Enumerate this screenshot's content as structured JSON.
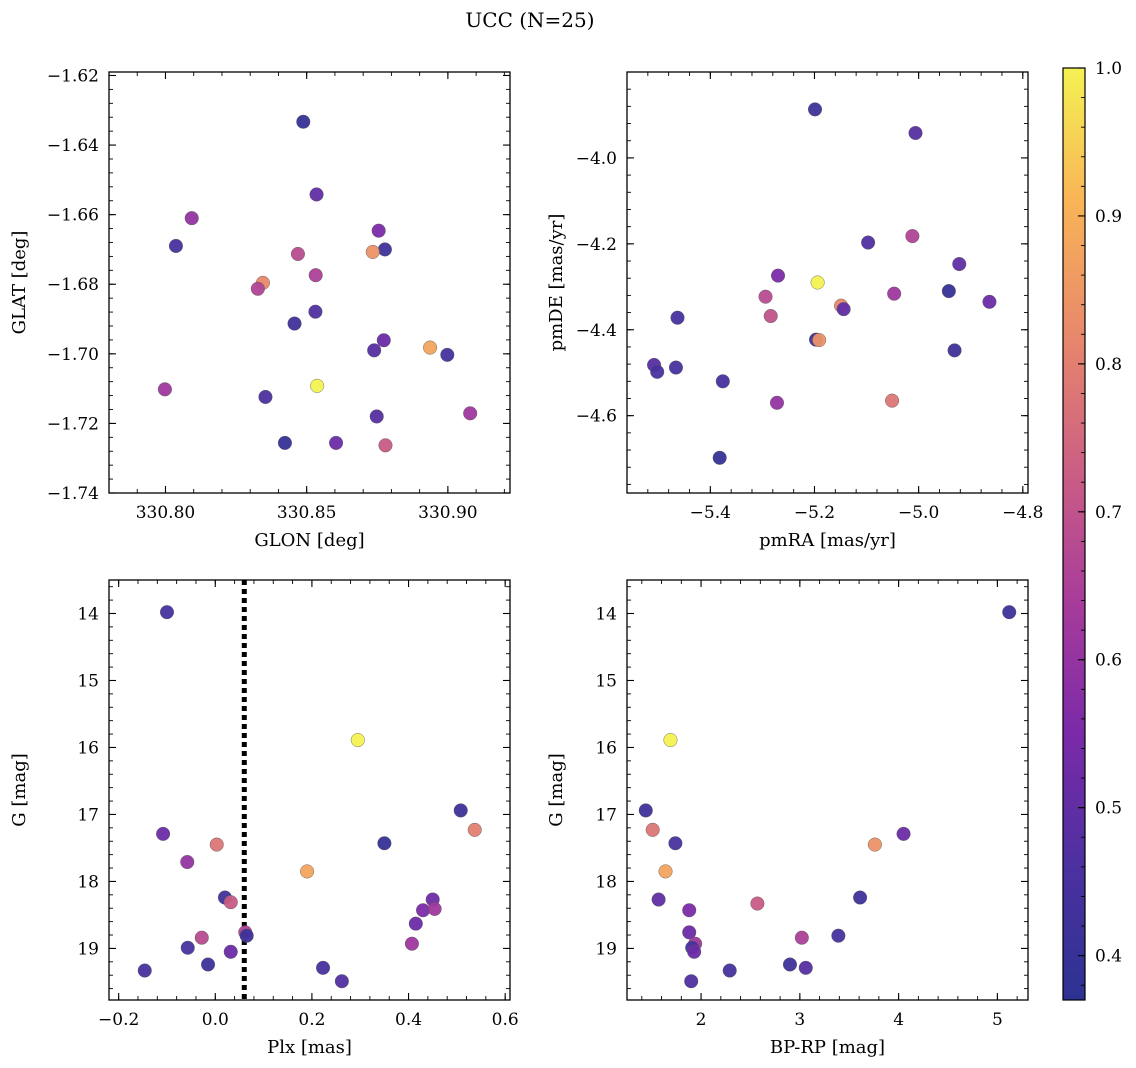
{
  "figure": {
    "title": "UCC (N=25)"
  },
  "colorbar": {
    "min": 0.37,
    "max": 1.0,
    "ticks": [
      0.4,
      0.5,
      0.6,
      0.7,
      0.8,
      0.9,
      1.0
    ],
    "tick_labels": [
      "0.4",
      "0.5",
      "0.6",
      "0.7",
      "0.8",
      "0.9",
      "1.0"
    ],
    "colormap": "plasma",
    "stops": [
      "#2c3292",
      "#4c31a0",
      "#7b2aa9",
      "#a83c9a",
      "#cc5f83",
      "#e8886b",
      "#f9b457",
      "#f4f252"
    ]
  },
  "chart_data": [
    {
      "type": "scatter",
      "title": "",
      "xlabel": "GLON [deg]",
      "ylabel": "GLAT [deg]",
      "xlim": [
        330.78,
        330.922
      ],
      "ylim": [
        -1.74,
        -1.619
      ],
      "xticks": [
        330.8,
        330.85,
        330.9
      ],
      "xtick_labels": [
        "330.80",
        "330.85",
        "330.90"
      ],
      "yticks": [
        -1.74,
        -1.72,
        -1.7,
        -1.68,
        -1.66,
        -1.64,
        -1.62
      ],
      "ytick_labels": [
        "−1.74",
        "−1.72",
        "−1.70",
        "−1.68",
        "−1.66",
        "−1.64",
        "−1.62"
      ],
      "x": [
        330.8488,
        330.8535,
        330.8093,
        330.8037,
        330.8755,
        330.8777,
        330.8469,
        330.8532,
        330.8345,
        330.8327,
        330.8734,
        330.8531,
        330.8457,
        330.8773,
        330.8937,
        330.8998,
        330.8739,
        330.7998,
        330.8537,
        330.8354,
        330.8423,
        330.8604,
        330.8748,
        330.8779,
        330.9079
      ],
      "y": [
        -1.6333,
        -1.6542,
        -1.661,
        -1.669,
        -1.6646,
        -1.67,
        -1.6713,
        -1.6774,
        -1.6796,
        -1.6813,
        -1.6707,
        -1.6879,
        -1.6913,
        -1.6961,
        -1.6982,
        -1.7003,
        -1.699,
        -1.7102,
        -1.7092,
        -1.7124,
        -1.7256,
        -1.7256,
        -1.718,
        -1.7263,
        -1.7171
      ],
      "v": [
        0.4,
        0.5,
        0.6,
        0.45,
        0.55,
        0.42,
        0.68,
        0.65,
        0.82,
        0.66,
        0.84,
        0.47,
        0.42,
        0.52,
        0.88,
        0.44,
        0.48,
        0.62,
        1.0,
        0.46,
        0.4,
        0.52,
        0.48,
        0.72,
        0.62
      ]
    },
    {
      "type": "scatter",
      "title": "",
      "xlabel": "pmRA [mas/yr]",
      "ylabel": "pmDE [mas/yr]",
      "xlim": [
        -5.56,
        -4.79
      ],
      "ylim": [
        -4.78,
        -3.8
      ],
      "xticks": [
        -5.4,
        -5.2,
        -5.0,
        -4.8
      ],
      "xtick_labels": [
        "−5.4",
        "−5.2",
        "−5.0",
        "−4.8"
      ],
      "yticks": [
        -4.6,
        -4.4,
        -4.2,
        -4.0
      ],
      "ytick_labels": [
        "−4.6",
        "−4.4",
        "−4.2",
        "−4.0"
      ],
      "x": [
        -5.199,
        -5.006,
        -5.097,
        -5.012,
        -4.922,
        -5.27,
        -5.294,
        -5.194,
        -4.942,
        -4.864,
        -5.149,
        -5.047,
        -5.284,
        -5.144,
        -5.463,
        -5.508,
        -5.502,
        -5.466,
        -5.376,
        -5.197,
        -5.191,
        -4.931,
        -5.051,
        -5.272,
        -5.382
      ],
      "y": [
        -3.887,
        -3.942,
        -4.197,
        -4.182,
        -4.247,
        -4.274,
        -4.323,
        -4.29,
        -4.31,
        -4.335,
        -4.344,
        -4.316,
        -4.368,
        -4.352,
        -4.372,
        -4.482,
        -4.498,
        -4.488,
        -4.52,
        -4.423,
        -4.424,
        -4.448,
        -4.565,
        -4.57,
        -4.698
      ],
      "v": [
        0.42,
        0.48,
        0.47,
        0.66,
        0.5,
        0.55,
        0.68,
        1.0,
        0.4,
        0.52,
        0.82,
        0.62,
        0.7,
        0.5,
        0.45,
        0.48,
        0.45,
        0.45,
        0.45,
        0.42,
        0.84,
        0.42,
        0.78,
        0.6,
        0.4
      ]
    },
    {
      "type": "scatter",
      "title": "",
      "xlabel": "Plx [mas]",
      "ylabel": "G [mag]",
      "xlim": [
        -0.22,
        0.61
      ],
      "ylim": [
        19.77,
        13.5
      ],
      "y_inverted": true,
      "vline": 0.06,
      "xticks": [
        -0.2,
        0.0,
        0.2,
        0.4,
        0.6
      ],
      "xtick_labels": [
        "−0.2",
        "0.0",
        "0.2",
        "0.4",
        "0.6"
      ],
      "yticks": [
        14,
        15,
        16,
        17,
        18,
        19
      ],
      "ytick_labels": [
        "14",
        "15",
        "16",
        "17",
        "18",
        "19"
      ],
      "x": [
        -0.1,
        0.295,
        0.508,
        0.537,
        -0.108,
        0.35,
        0.003,
        -0.058,
        0.19,
        0.02,
        0.032,
        0.45,
        0.43,
        0.454,
        0.415,
        0.062,
        0.065,
        -0.028,
        -0.057,
        0.407,
        0.032,
        -0.015,
        -0.146,
        0.223,
        0.262
      ],
      "y": [
        13.98,
        15.89,
        16.94,
        17.23,
        17.29,
        17.43,
        17.45,
        17.71,
        17.85,
        18.24,
        18.31,
        18.27,
        18.43,
        18.41,
        18.63,
        18.76,
        18.81,
        18.84,
        18.99,
        18.93,
        19.05,
        19.24,
        19.33,
        19.29,
        19.49
      ],
      "v": [
        0.45,
        1.0,
        0.42,
        0.8,
        0.52,
        0.4,
        0.78,
        0.6,
        0.88,
        0.42,
        0.72,
        0.52,
        0.55,
        0.62,
        0.52,
        0.66,
        0.42,
        0.68,
        0.45,
        0.62,
        0.52,
        0.42,
        0.45,
        0.45,
        0.47
      ]
    },
    {
      "type": "scatter",
      "title": "",
      "xlabel": "BP-RP [mag]",
      "ylabel": "G [mag]",
      "xlim": [
        1.25,
        5.31
      ],
      "ylim": [
        19.77,
        13.5
      ],
      "y_inverted": true,
      "xticks": [
        2,
        3,
        4,
        5
      ],
      "xtick_labels": [
        "2",
        "3",
        "4",
        "5"
      ],
      "yticks": [
        14,
        15,
        16,
        17,
        18,
        19
      ],
      "ytick_labels": [
        "14",
        "15",
        "16",
        "17",
        "18",
        "19"
      ],
      "x": [
        5.12,
        1.69,
        1.44,
        1.51,
        1.74,
        4.05,
        3.76,
        1.64,
        1.57,
        2.57,
        3.61,
        1.88,
        1.88,
        1.94,
        1.91,
        3.02,
        3.39,
        1.93,
        2.29,
        3.06,
        2.9,
        1.9
      ],
      "y": [
        13.98,
        15.89,
        16.94,
        17.23,
        17.43,
        17.29,
        17.45,
        17.85,
        18.27,
        18.33,
        18.24,
        18.43,
        18.76,
        18.93,
        18.99,
        18.84,
        18.81,
        19.05,
        19.33,
        19.29,
        19.24,
        19.49
      ],
      "v": [
        0.42,
        1.0,
        0.42,
        0.78,
        0.45,
        0.52,
        0.84,
        0.88,
        0.5,
        0.72,
        0.42,
        0.55,
        0.52,
        0.62,
        0.45,
        0.65,
        0.45,
        0.52,
        0.45,
        0.48,
        0.42,
        0.47
      ]
    }
  ]
}
